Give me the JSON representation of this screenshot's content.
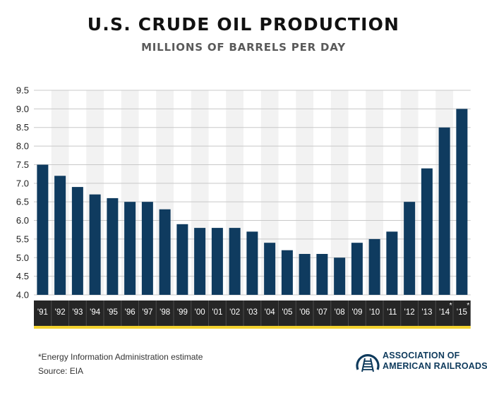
{
  "header": {
    "title": "U.S. CRUDE OIL PRODUCTION",
    "subtitle": "MILLIONS OF BARRELS PER DAY"
  },
  "footer": {
    "footnote": "*Energy Information Administration estimate",
    "source": "Source: EIA",
    "logo_line1": "ASSOCIATION OF",
    "logo_line2": "AMERICAN RAILROADS"
  },
  "chart_data": {
    "type": "bar",
    "title": "U.S. CRUDE OIL PRODUCTION",
    "subtitle": "MILLIONS OF BARRELS PER DAY",
    "categories": [
      "'91",
      "'92",
      "'93",
      "'94",
      "'95",
      "'96",
      "'97",
      "'98",
      "'99",
      "'00",
      "'01",
      "'02",
      "'03",
      "'04",
      "'05",
      "'06",
      "'07",
      "'08",
      "'09",
      "'10",
      "'11",
      "'12",
      "'13",
      "'14*",
      "'15*"
    ],
    "values": [
      7.5,
      7.2,
      6.9,
      6.7,
      6.6,
      6.5,
      6.5,
      6.3,
      5.9,
      5.8,
      5.8,
      5.8,
      5.7,
      5.4,
      5.2,
      5.1,
      5.1,
      5.0,
      5.4,
      5.5,
      5.7,
      6.5,
      7.4,
      8.5,
      9.0
    ],
    "ylim": [
      4.0,
      9.5
    ],
    "yticks": [
      "4.0",
      "4.5",
      "5.0",
      "5.5",
      "6.0",
      "6.5",
      "7.0",
      "7.5",
      "8.0",
      "8.5",
      "9.0",
      "9.5"
    ],
    "grid": true,
    "colors": {
      "bar": "#0f3b5f",
      "band": "#f2f2f2",
      "grid": "#c8c8c8",
      "axis_strip": "#262626",
      "axis_text": "#ffffff",
      "accent": "#f2d12e"
    }
  }
}
